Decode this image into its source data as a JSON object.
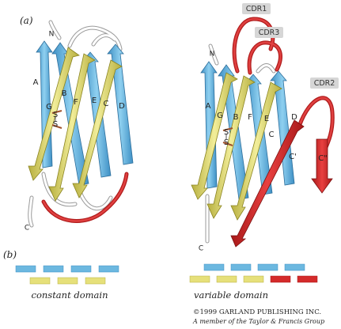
{
  "panels": {
    "a": "(a)",
    "b": "(b)"
  },
  "termini": {
    "n": "N",
    "c": "C"
  },
  "constant": {
    "caption": "constant domain",
    "strands": {
      "A": "A",
      "B": "B",
      "C": "C",
      "D": "D",
      "E": "E",
      "F": "F",
      "G": "G"
    },
    "disulfide": {
      "s1": "S",
      "s2": "S"
    }
  },
  "variable": {
    "caption": "variable domain",
    "strands": {
      "A": "A",
      "B": "B",
      "C": "C",
      "Cp": "C'",
      "Cpp": "C\"",
      "D": "D",
      "E": "E",
      "F": "F",
      "G": "G"
    },
    "disulfide": {
      "s1": "S",
      "s2": "S"
    },
    "cdrs": {
      "cdr1": "CDR1",
      "cdr2": "CDR2",
      "cdr3": "CDR3"
    }
  },
  "colors": {
    "blue_sheet": "#6cb8e0",
    "yellow_sheet": "#e6e07a",
    "cdr_red": "#d42b2b",
    "loop_gray": "#e6e6e6",
    "badge_gray": "#d6d6d6"
  },
  "copyright": {
    "line1": "©1999 GARLAND PUBLISHING INC.",
    "line2": "A member of the Taylor & Francis Group"
  }
}
